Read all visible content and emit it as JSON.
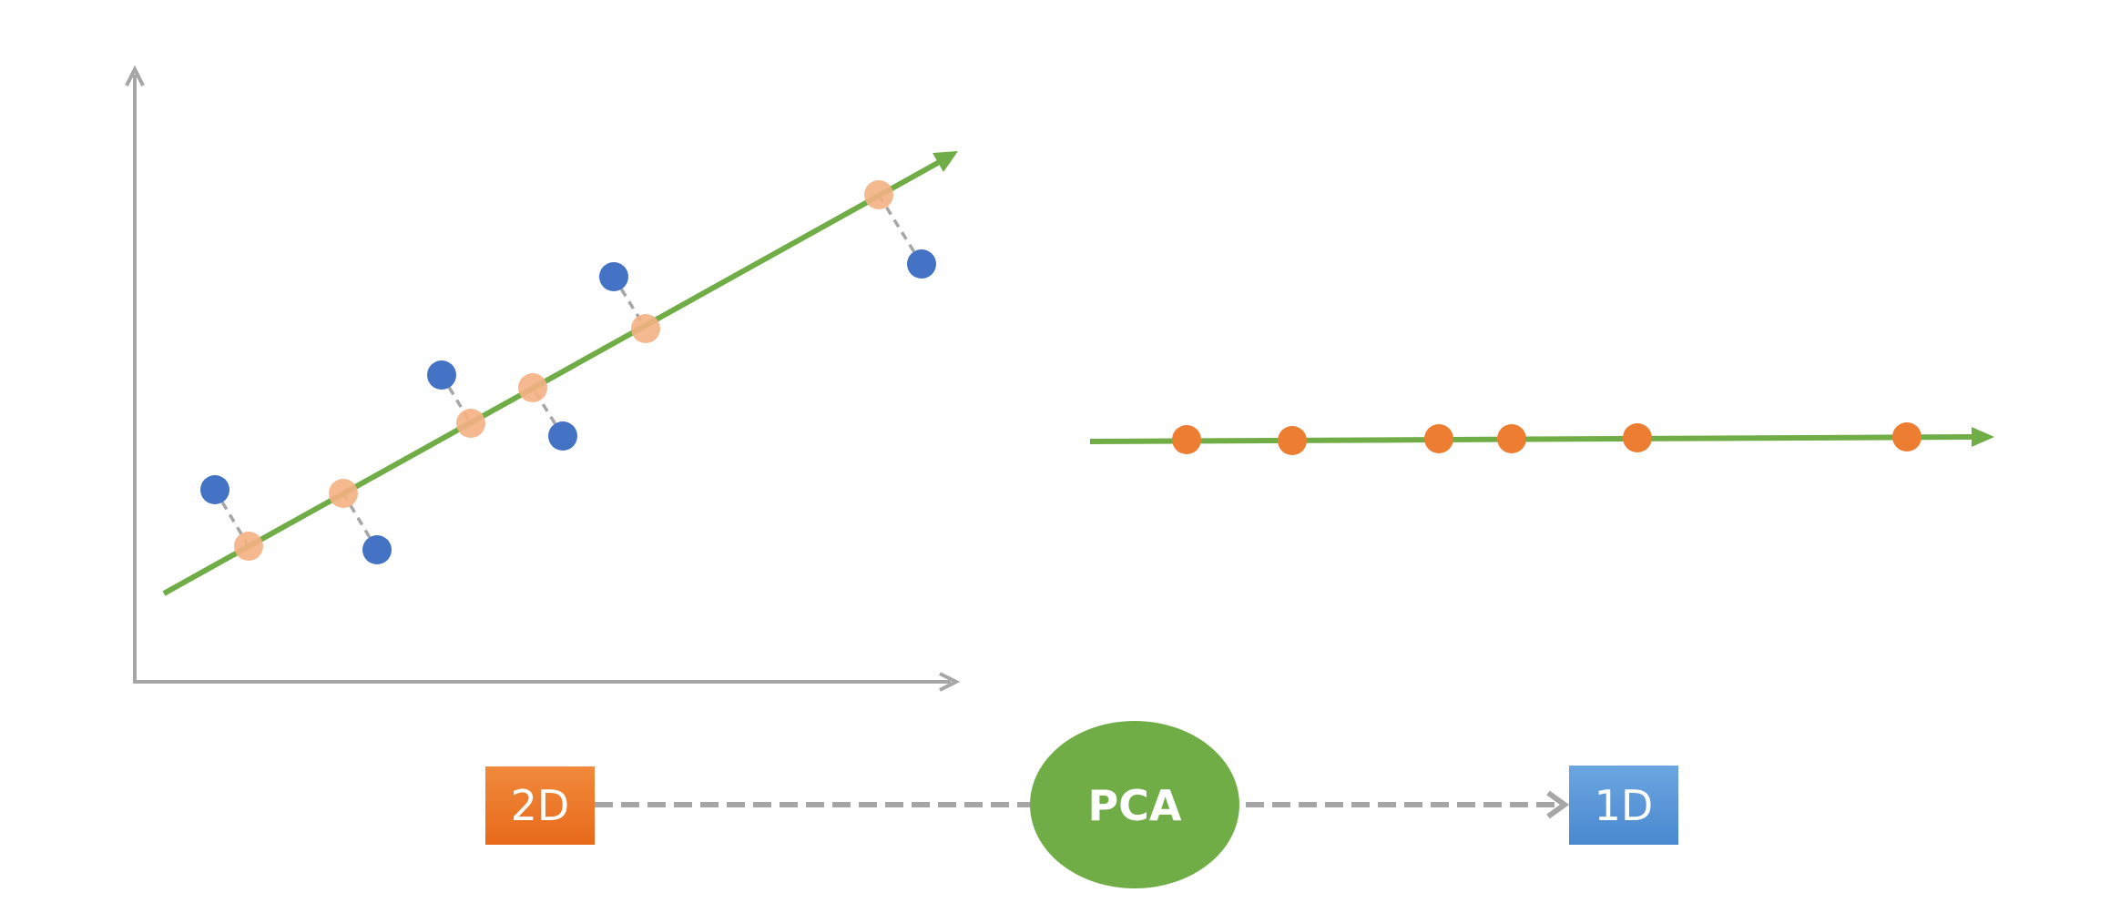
{
  "nodes": [
    {
      "label": "2D"
    },
    {
      "label": "PCA"
    },
    {
      "label": "1D"
    }
  ]
}
